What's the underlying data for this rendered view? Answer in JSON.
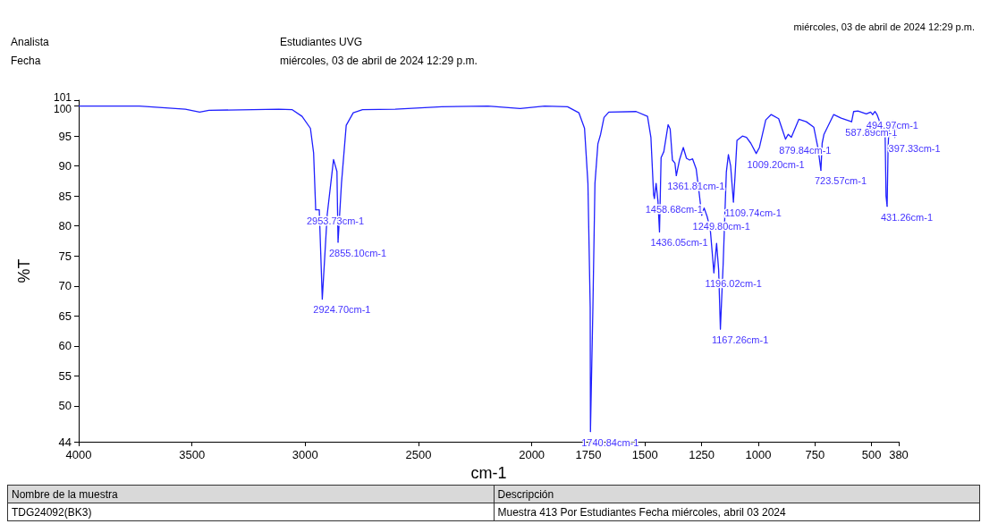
{
  "chart_data": {
    "type": "line",
    "xlabel": "cm-1",
    "ylabel": "%T",
    "xlim": [
      4000,
      380
    ],
    "xticks": [
      4000,
      3500,
      3000,
      2500,
      2000,
      1750,
      1500,
      1250,
      1000,
      750,
      500,
      380
    ],
    "ylim": [
      44,
      101
    ],
    "yticks": [
      44,
      50,
      55,
      60,
      65,
      70,
      75,
      80,
      85,
      90,
      95,
      100,
      101
    ],
    "grid": false,
    "marker": "none",
    "line_style": "solid",
    "series": [
      {
        "color": "#1f1fff",
        "x": [
          4000,
          3732,
          3529,
          3466,
          3425,
          3117,
          3057,
          3014,
          2977,
          2963,
          2953.73,
          2938,
          2924.7,
          2903,
          2875,
          2860,
          2855.1,
          2840,
          2819,
          2788,
          2747,
          2603,
          2398,
          2193,
          2051,
          1943,
          1842,
          1792,
          1767,
          1752,
          1742,
          1740.84,
          1730,
          1721,
          1708,
          1696,
          1681,
          1660,
          1539,
          1489,
          1474,
          1462,
          1458.68,
          1451,
          1443,
          1436.05,
          1429,
          1417,
          1398,
          1389,
          1379,
          1368,
          1361.81,
          1348,
          1331,
          1317,
          1303,
          1290,
          1274,
          1260,
          1249.8,
          1239,
          1226,
          1212,
          1196.02,
          1184,
          1175,
          1167.26,
          1155,
          1141,
          1132,
          1122,
          1109.74,
          1103,
          1094,
          1070,
          1052,
          1033,
          1009.2,
          995,
          967,
          943,
          910,
          879.84,
          868,
          854,
          821,
          788,
          755,
          736,
          723.57,
          718,
          710,
          667,
          634,
          587.89,
          579,
          560,
          523,
          504,
          494.97,
          485,
          476,
          466,
          449,
          440,
          436,
          431.26,
          427,
          422,
          404,
          397.33,
          390,
          380
        ],
        "values": [
          100,
          100,
          99.5,
          99.0,
          99.3,
          99.5,
          99.4,
          98.3,
          96.3,
          92.2,
          82.7,
          82.7,
          67.8,
          81.9,
          91.1,
          89.1,
          77.3,
          87.1,
          96.8,
          98.9,
          99.4,
          99.5,
          99.9,
          100,
          99.6,
          100,
          99.9,
          98.9,
          96.3,
          87.1,
          66.5,
          45.7,
          66.5,
          87.1,
          93.7,
          95.3,
          98.1,
          99.0,
          99.1,
          98.3,
          94.8,
          85.2,
          84.6,
          87.1,
          84.2,
          79.0,
          91.4,
          92.4,
          96.9,
          96.2,
          91.0,
          90.5,
          88.4,
          91.0,
          93.1,
          91.3,
          91.0,
          91.2,
          89.5,
          85.2,
          81.8,
          83.0,
          81.6,
          79.5,
          72.2,
          77.1,
          72.7,
          62.8,
          73.7,
          89.0,
          91.9,
          90.0,
          84.0,
          88.1,
          94.3,
          95.0,
          94.8,
          93.8,
          92.1,
          93.1,
          97.7,
          98.6,
          97.9,
          94.5,
          95.3,
          94.8,
          97.8,
          97.4,
          96.5,
          92.9,
          89.3,
          93.8,
          95.3,
          98.6,
          98.0,
          97.4,
          99.1,
          99.2,
          98.7,
          99.0,
          98.6,
          99.1,
          98.6,
          97.6,
          95.3,
          95.0,
          85.0,
          83.3,
          93.0,
          97.4,
          97.5,
          94.8,
          97.2,
          96.4
        ]
      }
    ],
    "annotations": [
      "Analista",
      "Estudiantes UVG",
      "Fecha",
      "miércoles, 03 de abril de 2024 12:29 p.m.",
      "miércoles, 03 de abril de 2024 12:29 p.m.",
      "Nombre de la muestra",
      "Descripción",
      "TDG24092(BK3)",
      "Muestra 413 Por Estudiantes Fecha miércoles, abril 03 2024",
      {
        "text": "2953.73cm-1",
        "x": 2953.73,
        "y": 82.7
      },
      {
        "text": "2924.70cm-1",
        "x": 2924.7,
        "y": 67.8
      },
      {
        "text": "2855.10cm-1",
        "x": 2855.1,
        "y": 77.3
      },
      {
        "text": "1740.84cm-1",
        "x": 1740.84,
        "y": 45.7
      },
      {
        "text": "1458.68cm-1",
        "x": 1458.68,
        "y": 84.6
      },
      {
        "text": "1436.05cm-1",
        "x": 1436.05,
        "y": 79.0
      },
      {
        "text": "1361.81cm-1",
        "x": 1361.81,
        "y": 88.4
      },
      {
        "text": "1249.80cm-1",
        "x": 1249.8,
        "y": 81.8
      },
      {
        "text": "1196.02cm-1",
        "x": 1196.02,
        "y": 72.2
      },
      {
        "text": "1167.26cm-1",
        "x": 1167.26,
        "y": 62.8
      },
      {
        "text": "1109.74cm-1",
        "x": 1109.74,
        "y": 84.0
      },
      {
        "text": "1009.20cm-1",
        "x": 1009.2,
        "y": 92.1
      },
      {
        "text": "879.84cm-1",
        "x": 879.84,
        "y": 94.5
      },
      {
        "text": "723.57cm-1",
        "x": 723.57,
        "y": 89.3
      },
      {
        "text": "587.89cm-1",
        "x": 587.89,
        "y": 97.4
      },
      {
        "text": "494.97cm-1",
        "x": 494.97,
        "y": 98.6
      },
      {
        "text": "431.26cm-1",
        "x": 431.26,
        "y": 83.3
      },
      {
        "text": "397.33cm-1",
        "x": 397.33,
        "y": 94.8
      }
    ]
  }
}
